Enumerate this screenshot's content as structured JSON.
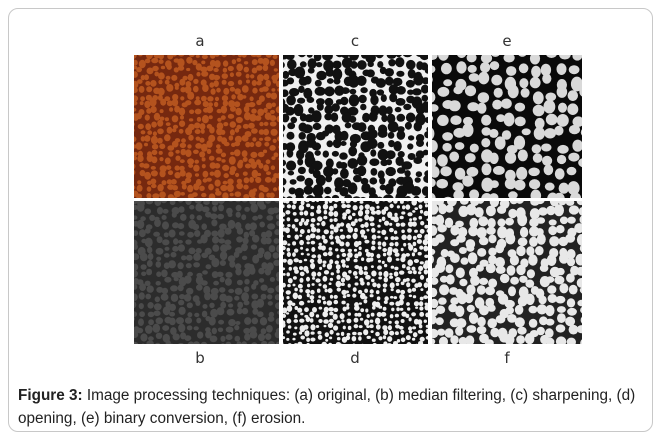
{
  "figure": {
    "panels": [
      {
        "label": "a"
      },
      {
        "label": "b"
      },
      {
        "label": "c"
      },
      {
        "label": "d"
      },
      {
        "label": "e"
      },
      {
        "label": "f"
      }
    ],
    "caption": {
      "label": "Figure 3:",
      "text": " Image processing techniques: (a) original, (b) median filtering, (c) sharpening, (d) opening, (e) binary conversion, (f) erosion."
    }
  }
}
